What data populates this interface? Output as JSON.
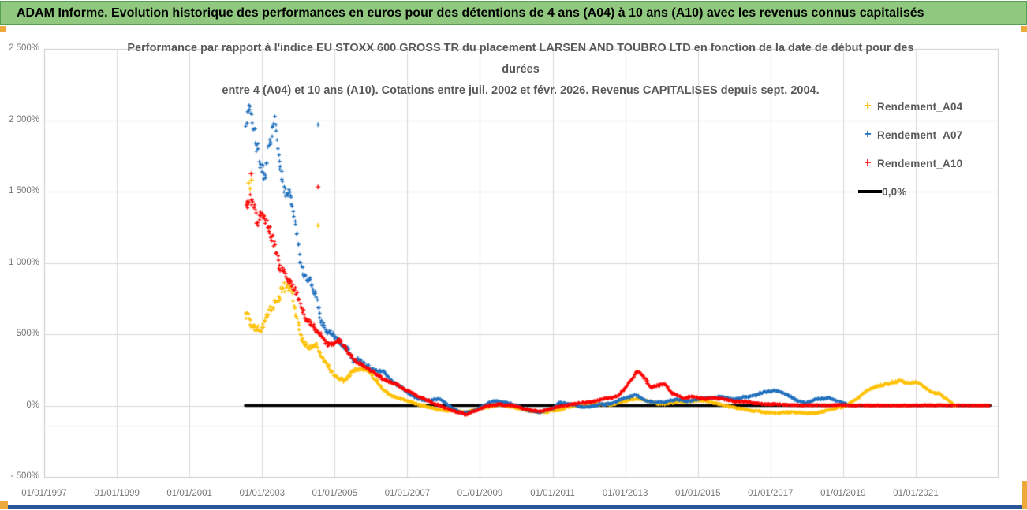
{
  "header": {
    "title": "ADAM Informe. Evolution historique des performances en euros pour des détentions de 4 ans (A04) à 10 ans (A10) avec les revenus connus capitalisés",
    "bg_color": "#8fc87e"
  },
  "legend": {
    "items": [
      {
        "label": "Rendement_A04",
        "color": "#ffc000",
        "marker": "+"
      },
      {
        "label": "Rendement_A07",
        "color": "#1f6fbd",
        "marker": "+"
      },
      {
        "label": "Rendement_A10",
        "color": "#ff0000",
        "marker": "+"
      },
      {
        "label": "0,0%",
        "color": "#000000",
        "marker": "line"
      }
    ]
  },
  "chart_data": {
    "type": "scatter",
    "title_lines": [
      "Performance par rapport à l'indice EU STOXX 600 GROSS TR  du placement LARSEN AND TOUBRO LTD en fonction de la date de début pour des",
      "durées",
      "entre 4 (A04) et 10 ans (A10). Cotations entre juil. 2002 et févr. 2026. Revenus CAPITALISES depuis sept. 2004."
    ],
    "x_axis": {
      "tick_labels": [
        "01/01/1997",
        "01/01/1999",
        "01/01/2001",
        "01/01/2003",
        "01/01/2005",
        "01/01/2007",
        "01/01/2009",
        "01/01/2011",
        "01/01/2013",
        "01/01/2015",
        "01/01/2017",
        "01/01/2019",
        "01/01/2021"
      ],
      "tick_years": [
        1997,
        1999,
        2001,
        2003,
        2005,
        2007,
        2009,
        2011,
        2013,
        2015,
        2017,
        2019,
        2021
      ],
      "grid": true
    },
    "y_axis": {
      "tick_labels": [
        "2 500%",
        "2 000%",
        "1 500%",
        "1 000%",
        "500%",
        "0%",
        "- 500%"
      ],
      "tick_values": [
        2500,
        2000,
        1500,
        1000,
        500,
        0,
        -500
      ],
      "min": -500,
      "max": 2500,
      "unit": "%",
      "grid": true
    },
    "zero_line": {
      "label": "0,0%",
      "color": "#000000",
      "value": 0,
      "start_year": 2002.54,
      "end_year": 2023.05,
      "width": 3.6
    },
    "series": [
      {
        "name": "Rendement_A04",
        "color": "#ffc000",
        "waypoints": [
          [
            2002.55,
            620,
            70
          ],
          [
            2002.75,
            540,
            50
          ],
          [
            2002.95,
            500,
            45
          ],
          [
            2003.15,
            640,
            60
          ],
          [
            2003.4,
            720,
            80
          ],
          [
            2003.6,
            880,
            70
          ],
          [
            2003.8,
            840,
            60
          ],
          [
            2003.95,
            620,
            50
          ],
          [
            2004.1,
            470,
            40
          ],
          [
            2004.3,
            420,
            40
          ],
          [
            2004.5,
            430,
            35
          ],
          [
            2004.65,
            330,
            30
          ],
          [
            2004.8,
            290,
            25
          ],
          [
            2005.0,
            215,
            25
          ],
          [
            2005.25,
            180,
            22
          ],
          [
            2005.55,
            245,
            25
          ],
          [
            2005.85,
            265,
            25
          ],
          [
            2006.1,
            185,
            20
          ],
          [
            2006.45,
            90,
            15
          ],
          [
            2006.75,
            55,
            12
          ],
          [
            2007.05,
            25,
            10
          ],
          [
            2007.35,
            0,
            9
          ],
          [
            2007.7,
            -25,
            8
          ],
          [
            2008.1,
            -35,
            8
          ],
          [
            2008.6,
            -45,
            8
          ],
          [
            2009.1,
            -15,
            8
          ],
          [
            2009.6,
            5,
            8
          ],
          [
            2010.1,
            -25,
            8
          ],
          [
            2010.6,
            -45,
            8
          ],
          [
            2011.1,
            -30,
            8
          ],
          [
            2011.6,
            0,
            8
          ],
          [
            2012.1,
            10,
            8
          ],
          [
            2012.6,
            5,
            8
          ],
          [
            2013.05,
            35,
            9
          ],
          [
            2013.35,
            55,
            10
          ],
          [
            2013.7,
            25,
            8
          ],
          [
            2014.1,
            10,
            8
          ],
          [
            2014.6,
            25,
            8
          ],
          [
            2015.1,
            30,
            8
          ],
          [
            2015.6,
            10,
            8
          ],
          [
            2016.1,
            -20,
            8
          ],
          [
            2016.6,
            -40,
            8
          ],
          [
            2017.1,
            -55,
            8
          ],
          [
            2017.6,
            -45,
            8
          ],
          [
            2018.1,
            -55,
            8
          ],
          [
            2018.6,
            -30,
            8
          ],
          [
            2019.05,
            0,
            8
          ],
          [
            2019.35,
            45,
            10
          ],
          [
            2019.65,
            95,
            12
          ],
          [
            2019.95,
            135,
            14
          ],
          [
            2020.25,
            160,
            16
          ],
          [
            2020.55,
            172,
            16
          ],
          [
            2020.85,
            150,
            14
          ],
          [
            2021.05,
            158,
            13
          ],
          [
            2021.25,
            120,
            11
          ],
          [
            2021.45,
            92,
            10
          ],
          [
            2021.65,
            80,
            9
          ],
          [
            2021.85,
            48,
            7
          ],
          [
            2022.0,
            15,
            5
          ],
          [
            2022.1,
            2,
            4
          ]
        ],
        "outliers": [
          [
            2002.63,
            1560
          ],
          [
            2002.67,
            1520
          ],
          [
            2002.71,
            1580
          ],
          [
            2004.54,
            1262
          ]
        ]
      },
      {
        "name": "Rendement_A07",
        "color": "#1f6fbd",
        "waypoints": [
          [
            2002.55,
            1975,
            110
          ],
          [
            2002.7,
            2050,
            85
          ],
          [
            2002.82,
            1820,
            120
          ],
          [
            2002.95,
            1705,
            100
          ],
          [
            2003.1,
            1625,
            85
          ],
          [
            2003.22,
            1855,
            95
          ],
          [
            2003.35,
            2015,
            70
          ],
          [
            2003.48,
            1710,
            85
          ],
          [
            2003.62,
            1480,
            70
          ],
          [
            2003.76,
            1455,
            80
          ],
          [
            2003.9,
            1295,
            85
          ],
          [
            2004.02,
            1010,
            85
          ],
          [
            2004.15,
            905,
            70
          ],
          [
            2004.3,
            950,
            60
          ],
          [
            2004.45,
            825,
            55
          ],
          [
            2004.6,
            645,
            45
          ],
          [
            2004.8,
            525,
            40
          ],
          [
            2005.0,
            485,
            35
          ],
          [
            2005.2,
            445,
            32
          ],
          [
            2005.5,
            350,
            28
          ],
          [
            2005.8,
            300,
            24
          ],
          [
            2006.1,
            252,
            20
          ],
          [
            2006.4,
            222,
            18
          ],
          [
            2006.7,
            152,
            15
          ],
          [
            2007.0,
            100,
            12
          ],
          [
            2007.3,
            52,
            10
          ],
          [
            2007.6,
            32,
            10
          ],
          [
            2007.9,
            42,
            10
          ],
          [
            2008.2,
            -12,
            9
          ],
          [
            2008.5,
            -52,
            9
          ],
          [
            2008.8,
            -42,
            8
          ],
          [
            2009.1,
            2,
            8
          ],
          [
            2009.4,
            32,
            8
          ],
          [
            2009.7,
            22,
            8
          ],
          [
            2010.0,
            0,
            8
          ],
          [
            2010.3,
            -32,
            8
          ],
          [
            2010.6,
            -42,
            8
          ],
          [
            2010.9,
            -28,
            8
          ],
          [
            2011.2,
            18,
            8
          ],
          [
            2011.5,
            8,
            8
          ],
          [
            2011.8,
            -12,
            8
          ],
          [
            2012.2,
            0,
            8
          ],
          [
            2012.6,
            12,
            8
          ],
          [
            2013.0,
            58,
            9
          ],
          [
            2013.3,
            72,
            10
          ],
          [
            2013.6,
            32,
            8
          ],
          [
            2014.0,
            22,
            8
          ],
          [
            2014.4,
            42,
            8
          ],
          [
            2014.8,
            32,
            8
          ],
          [
            2015.2,
            52,
            8
          ],
          [
            2015.6,
            62,
            8
          ],
          [
            2016.0,
            42,
            8
          ],
          [
            2016.4,
            62,
            9
          ],
          [
            2016.8,
            92,
            10
          ],
          [
            2017.1,
            102,
            10
          ],
          [
            2017.4,
            82,
            10
          ],
          [
            2017.7,
            42,
            8
          ],
          [
            2018.0,
            22,
            8
          ],
          [
            2018.3,
            42,
            8
          ],
          [
            2018.6,
            52,
            8
          ],
          [
            2018.9,
            22,
            6
          ],
          [
            2019.1,
            10,
            5
          ]
        ],
        "outliers": [
          [
            2004.54,
            1968
          ]
        ]
      },
      {
        "name": "Rendement_A10",
        "color": "#ff0000",
        "waypoints": [
          [
            2002.55,
            1425,
            85
          ],
          [
            2002.7,
            1450,
            75
          ],
          [
            2002.85,
            1305,
            80
          ],
          [
            2003.0,
            1350,
            70
          ],
          [
            2003.15,
            1250,
            65
          ],
          [
            2003.3,
            1150,
            62
          ],
          [
            2003.5,
            1000,
            60
          ],
          [
            2003.7,
            905,
            52
          ],
          [
            2003.9,
            850,
            50
          ],
          [
            2004.1,
            705,
            50
          ],
          [
            2004.3,
            600,
            42
          ],
          [
            2004.5,
            505,
            36
          ],
          [
            2004.7,
            452,
            32
          ],
          [
            2004.9,
            432,
            30
          ],
          [
            2005.1,
            452,
            30
          ],
          [
            2005.3,
            402,
            26
          ],
          [
            2005.6,
            322,
            25
          ],
          [
            2005.9,
            252,
            20
          ],
          [
            2006.2,
            202,
            18
          ],
          [
            2006.5,
            162,
            15
          ],
          [
            2006.8,
            132,
            12
          ],
          [
            2007.1,
            100,
            11
          ],
          [
            2007.4,
            62,
            10
          ],
          [
            2007.7,
            22,
            9
          ],
          [
            2008.0,
            -12,
            8
          ],
          [
            2008.3,
            -42,
            8
          ],
          [
            2008.6,
            -62,
            8
          ],
          [
            2008.9,
            -32,
            8
          ],
          [
            2009.2,
            0,
            8
          ],
          [
            2009.5,
            12,
            8
          ],
          [
            2009.8,
            2,
            8
          ],
          [
            2010.1,
            -12,
            8
          ],
          [
            2010.4,
            -32,
            8
          ],
          [
            2010.7,
            -42,
            8
          ],
          [
            2011.0,
            -22,
            8
          ],
          [
            2011.3,
            0,
            8
          ],
          [
            2011.6,
            12,
            8
          ],
          [
            2012.0,
            22,
            8
          ],
          [
            2012.4,
            42,
            8
          ],
          [
            2012.8,
            62,
            10
          ],
          [
            2013.1,
            152,
            14
          ],
          [
            2013.35,
            238,
            18
          ],
          [
            2013.5,
            198,
            16
          ],
          [
            2013.7,
            122,
            12
          ],
          [
            2013.9,
            142,
            12
          ],
          [
            2014.1,
            148,
            12
          ],
          [
            2014.3,
            82,
            10
          ],
          [
            2014.6,
            52,
            8
          ],
          [
            2014.9,
            62,
            8
          ],
          [
            2015.2,
            42,
            8
          ],
          [
            2015.5,
            52,
            8
          ],
          [
            2015.8,
            42,
            8
          ],
          [
            2016.1,
            32,
            7
          ],
          [
            2016.5,
            20,
            6
          ],
          [
            2016.9,
            12,
            5
          ],
          [
            2017.3,
            6,
            4
          ],
          [
            2017.6,
            2,
            3
          ],
          [
            2023.05,
            1,
            2
          ]
        ],
        "outliers": [
          [
            2004.54,
            1532
          ],
          [
            2002.7,
            1625
          ]
        ]
      }
    ]
  }
}
